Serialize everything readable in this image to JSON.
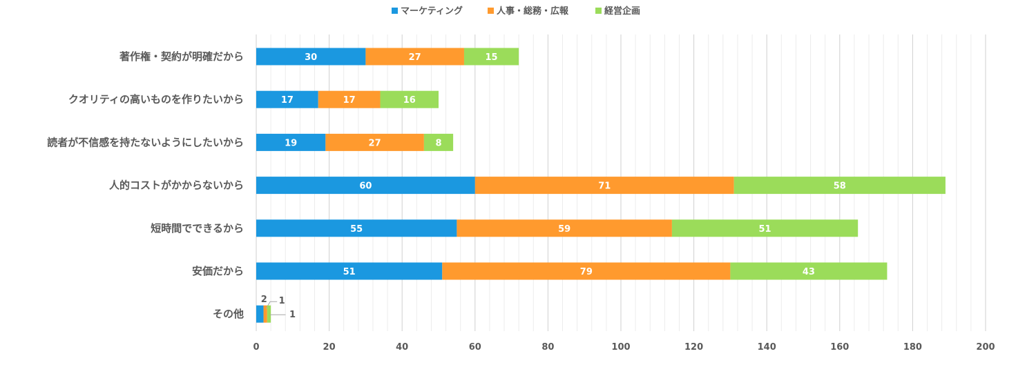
{
  "chart_data": {
    "type": "bar",
    "orientation": "horizontal",
    "stacked": true,
    "categories": [
      "著作権・契約が明確だから",
      "クオリティの高いものを作りたいから",
      "読者が不信感を持たないようにしたいから",
      "人的コストがかからないから",
      "短時間でできるから",
      "安価だから",
      "その他"
    ],
    "series": [
      {
        "name": "マーケティング",
        "color": "#1b98e0",
        "values": [
          30,
          17,
          19,
          60,
          55,
          51,
          2
        ]
      },
      {
        "name": "人事・総務・広報",
        "color": "#ff9a2e",
        "values": [
          27,
          17,
          27,
          71,
          59,
          79,
          1
        ]
      },
      {
        "name": "経営企画",
        "color": "#9bdc5a",
        "values": [
          15,
          16,
          8,
          58,
          51,
          43,
          1
        ]
      }
    ],
    "xlim": [
      0,
      200
    ],
    "xticks": [
      0,
      20,
      40,
      60,
      80,
      100,
      120,
      140,
      160,
      180,
      200
    ],
    "grid": true,
    "legend_position": "top-center",
    "title": "",
    "xlabel": "",
    "ylabel": ""
  }
}
